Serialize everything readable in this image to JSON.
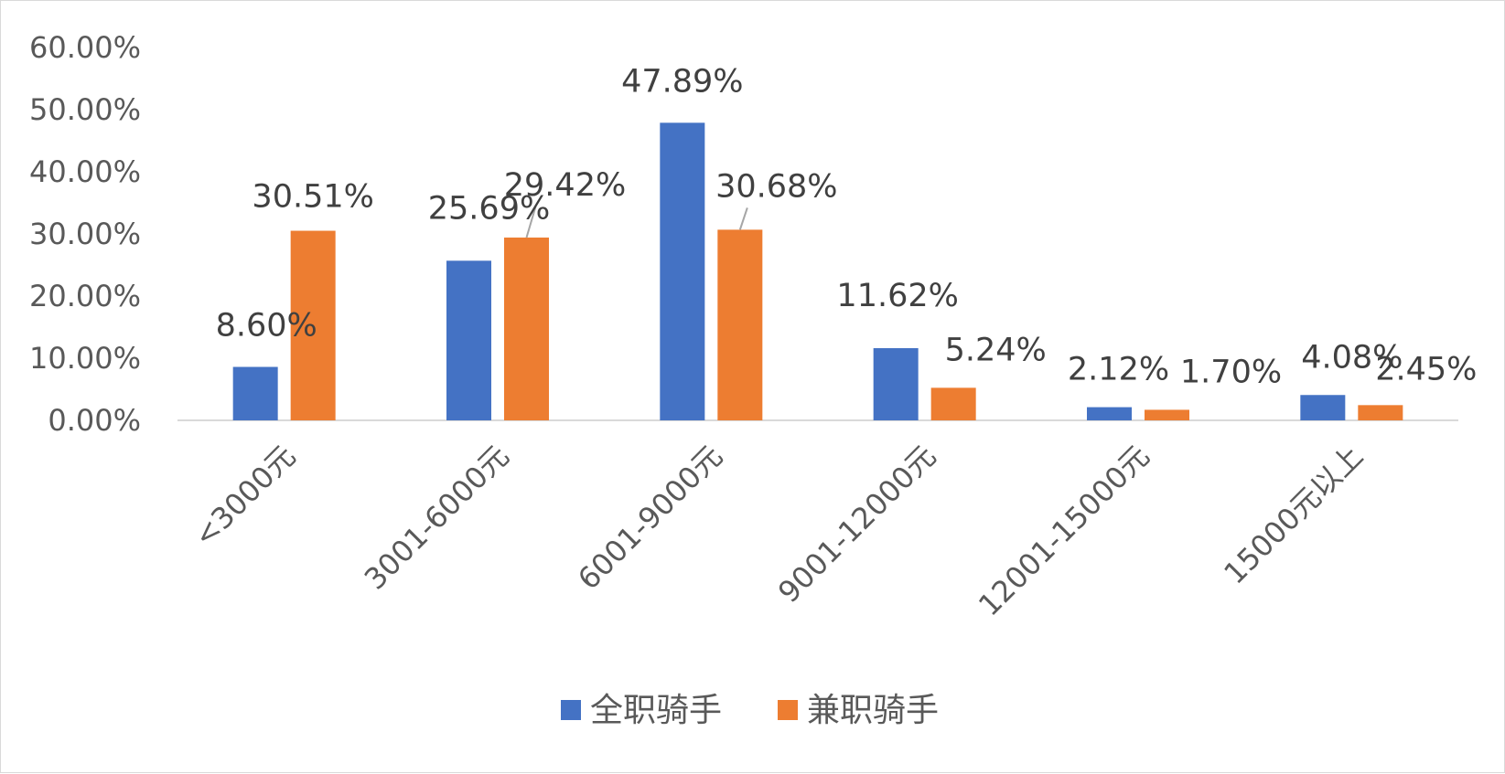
{
  "chart_data": {
    "type": "bar",
    "categories": [
      "<3000元",
      "3001-6000元",
      "6001-9000元",
      "9001-12000元",
      "12001-15000元",
      "15000元以上"
    ],
    "series": [
      {
        "name": "全职骑手",
        "color": "#4472c4",
        "values": [
          8.6,
          25.69,
          47.89,
          11.62,
          2.12,
          4.08
        ]
      },
      {
        "name": "兼职骑手",
        "color": "#ed7d31",
        "values": [
          30.51,
          29.42,
          30.68,
          5.24,
          1.7,
          2.45
        ]
      }
    ],
    "value_labels": [
      [
        "8.60%",
        "25.69%",
        "47.89%",
        "11.62%",
        "2.12%",
        "4.08%"
      ],
      [
        "30.51%",
        "29.42%",
        "30.68%",
        "5.24%",
        "1.70%",
        "2.45%"
      ]
    ],
    "yticks": [
      "0.00%",
      "10.00%",
      "20.00%",
      "30.00%",
      "40.00%",
      "50.00%",
      "60.00%"
    ],
    "ylim": [
      0,
      60
    ],
    "legend_position": "bottom",
    "grid": false
  }
}
